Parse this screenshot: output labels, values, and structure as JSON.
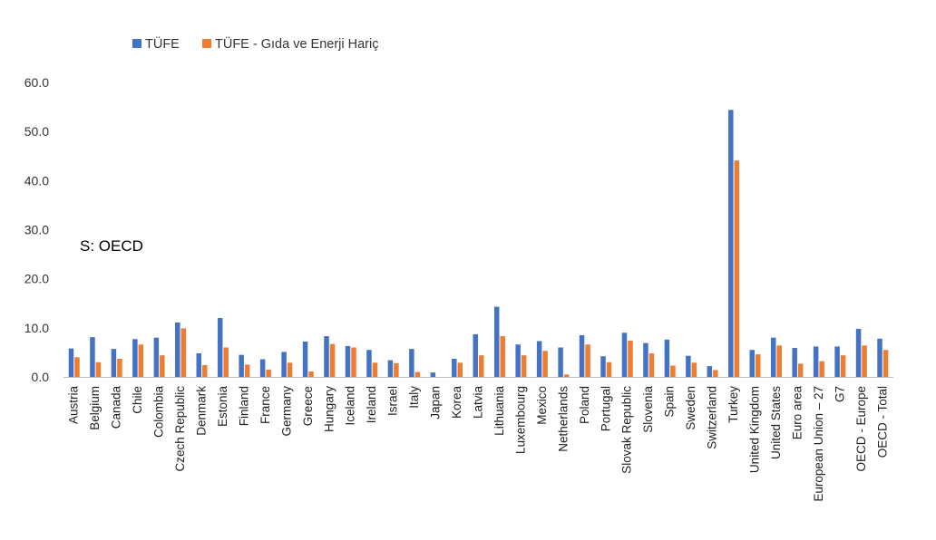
{
  "chart_data": {
    "type": "bar",
    "title": "",
    "xlabel": "",
    "ylabel": "",
    "ylim": [
      0,
      60
    ],
    "yticks": [
      "0.0",
      "10.0",
      "20.0",
      "30.0",
      "40.0",
      "50.0",
      "60.0"
    ],
    "grid": false,
    "legend_position": "top-left",
    "annotation": "S: OECD",
    "categories": [
      "Austria",
      "Belgium",
      "Canada",
      "Chile",
      "Colombia",
      "Czech Republic",
      "Denmark",
      "Estonia",
      "Finland",
      "France",
      "Germany",
      "Greece",
      "Hungary",
      "Iceland",
      "Ireland",
      "Israel",
      "Italy",
      "Japan",
      "Korea",
      "Latvia",
      "Lithuania",
      "Luxembourg",
      "Mexico",
      "Netherlands",
      "Poland",
      "Portugal",
      "Slovak Republic",
      "Slovenia",
      "Spain",
      "Sweden",
      "Switzerland",
      "Turkey",
      "United Kingdom",
      "United States",
      "Euro area",
      "European Union – 27",
      "G7",
      "OECD - Europe",
      "OECD - Total"
    ],
    "series": [
      {
        "name": "TÜFE",
        "color": "#4472C4",
        "values": [
          5.8,
          8.1,
          5.7,
          7.7,
          8.0,
          11.1,
          4.8,
          12.0,
          4.5,
          3.6,
          5.1,
          7.2,
          8.3,
          6.3,
          5.5,
          3.4,
          5.7,
          0.9,
          3.7,
          8.7,
          14.3,
          6.6,
          7.3,
          6.0,
          8.5,
          4.2,
          9.0,
          6.9,
          7.6,
          4.3,
          2.2,
          54.4,
          5.5,
          8.0,
          5.9,
          6.2,
          6.2,
          9.8,
          7.8
        ]
      },
      {
        "name": "TÜFE - Gıda ve Enerji Hariç",
        "color": "#ED7D31",
        "values": [
          4.0,
          3.0,
          3.7,
          6.6,
          4.4,
          9.9,
          2.4,
          6.0,
          2.5,
          1.5,
          2.9,
          1.1,
          6.7,
          6.0,
          2.9,
          2.8,
          1.0,
          0.0,
          2.9,
          4.4,
          8.3,
          4.4,
          5.3,
          0.5,
          6.6,
          3.0,
          7.4,
          4.8,
          2.3,
          2.9,
          1.4,
          44.1,
          4.6,
          6.4,
          2.7,
          3.2,
          4.4,
          6.4,
          5.5
        ]
      }
    ]
  }
}
